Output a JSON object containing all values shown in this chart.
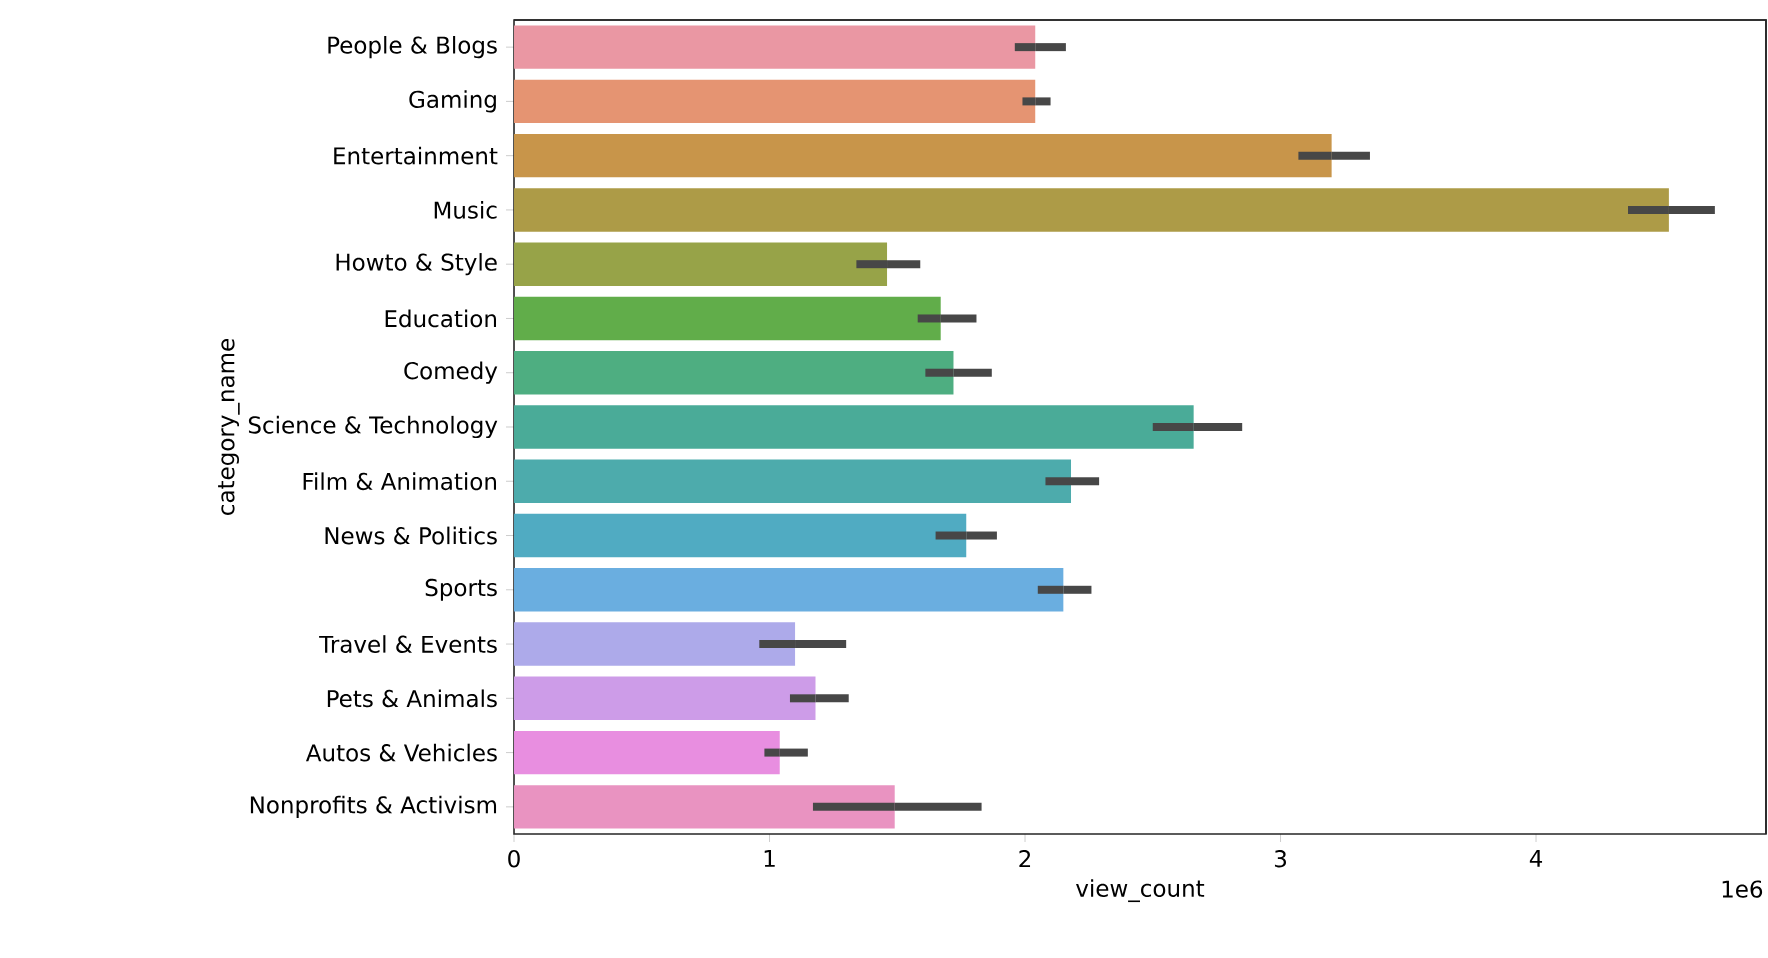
{
  "chart_data": {
    "type": "bar",
    "orientation": "horizontal",
    "xlabel": "view_count",
    "ylabel": "category_name",
    "categories": [
      "People & Blogs",
      "Gaming",
      "Entertainment",
      "Music",
      "Howto & Style",
      "Education",
      "Comedy",
      "Science & Technology",
      "Film & Animation",
      "News & Politics",
      "Sports",
      "Travel & Events",
      "Pets & Animals",
      "Autos & Vehicles",
      "Nonprofits & Activism"
    ],
    "values": [
      2.04,
      2.04,
      3.2,
      4.52,
      1.46,
      1.67,
      1.72,
      2.66,
      2.18,
      1.77,
      2.15,
      1.1,
      1.18,
      1.04,
      1.49
    ],
    "errors": [
      [
        1.96,
        2.16
      ],
      [
        1.99,
        2.1
      ],
      [
        3.07,
        3.35
      ],
      [
        4.36,
        4.7
      ],
      [
        1.34,
        1.59
      ],
      [
        1.58,
        1.81
      ],
      [
        1.61,
        1.87
      ],
      [
        2.5,
        2.85
      ],
      [
        2.08,
        2.29
      ],
      [
        1.65,
        1.89
      ],
      [
        2.05,
        2.26
      ],
      [
        0.96,
        1.3
      ],
      [
        1.08,
        1.31
      ],
      [
        0.98,
        1.15
      ],
      [
        1.17,
        1.83
      ]
    ],
    "colors": [
      "#ea97a3",
      "#e59472",
      "#c8954a",
      "#ad9b47",
      "#97a348",
      "#61ad4a",
      "#4eae81",
      "#4aab98",
      "#4dabac",
      "#50abc2",
      "#6aaee0",
      "#adaaea",
      "#cd9ce8",
      "#e88ee0",
      "#e993c1"
    ],
    "xlim": [
      0,
      4.9
    ],
    "xticks": [
      0,
      1,
      2,
      3,
      4
    ],
    "annotations": [
      "1e6"
    ]
  }
}
